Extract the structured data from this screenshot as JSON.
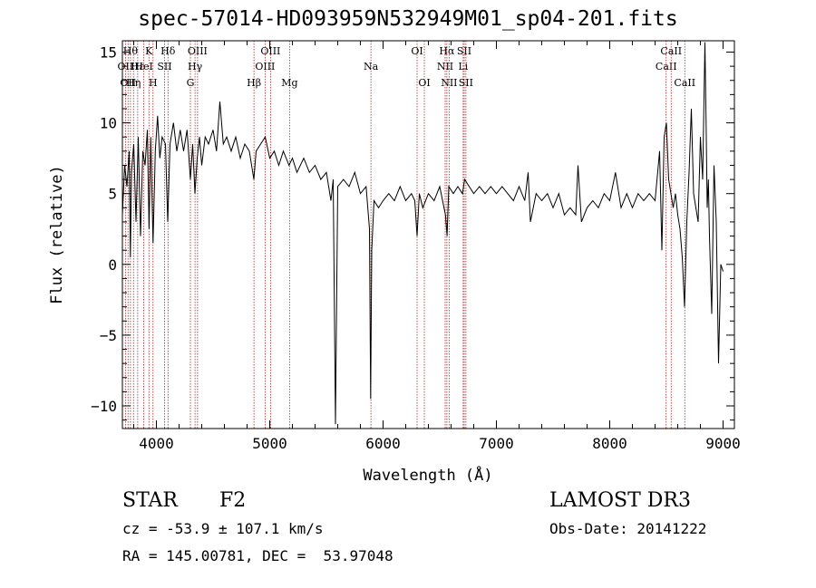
{
  "title": "spec-57014-HD093959N532949M01_sp04-201.fits",
  "footer": {
    "object_class": "STAR",
    "subclass": "F2",
    "survey": "LAMOST DR3",
    "cz": "cz = -53.9 ± 107.1 km/s",
    "obs_date": "Obs-Date: 20141222",
    "coords": "RA = 145.00781, DEC =  53.97048"
  },
  "chart_data": {
    "type": "line",
    "title": "spec-57014-HD093959N532949M01_sp04-201.fits",
    "xlabel": "Wavelength (Å)",
    "ylabel": "Flux (relative)",
    "xlim": [
      3700,
      9100
    ],
    "ylim": [
      -11.6,
      15.8
    ],
    "x_ticks": [
      "4000",
      "5000",
      "6000",
      "7000",
      "8000",
      "9000"
    ],
    "x_tick_values": [
      4000,
      5000,
      6000,
      7000,
      8000,
      9000
    ],
    "y_ticks": [
      "−10",
      "−5",
      "0",
      "5",
      "10",
      "15"
    ],
    "y_tick_values": [
      -10,
      -5,
      0,
      5,
      10,
      15
    ],
    "line_color": "#000000",
    "marker_color": "#b22222",
    "series": [
      {
        "values": [
          [
            3700,
            3.5
          ],
          [
            3720,
            7.0
          ],
          [
            3740,
            5.5
          ],
          [
            3760,
            8.0
          ],
          [
            3770,
            0.5
          ],
          [
            3780,
            6.5
          ],
          [
            3800,
            8.5
          ],
          [
            3820,
            3.0
          ],
          [
            3840,
            9.0
          ],
          [
            3860,
            2.0
          ],
          [
            3880,
            8.0
          ],
          [
            3900,
            7.0
          ],
          [
            3920,
            9.5
          ],
          [
            3935,
            2.5
          ],
          [
            3950,
            9.0
          ],
          [
            3970,
            1.5
          ],
          [
            3990,
            8.0
          ],
          [
            4010,
            10.5
          ],
          [
            4030,
            7.5
          ],
          [
            4050,
            9.0
          ],
          [
            4080,
            8.5
          ],
          [
            4100,
            3.0
          ],
          [
            4120,
            8.5
          ],
          [
            4150,
            10.0
          ],
          [
            4180,
            8.0
          ],
          [
            4210,
            9.5
          ],
          [
            4240,
            8.0
          ],
          [
            4270,
            9.5
          ],
          [
            4300,
            6.0
          ],
          [
            4320,
            8.5
          ],
          [
            4340,
            5.0
          ],
          [
            4360,
            7.5
          ],
          [
            4380,
            9.0
          ],
          [
            4400,
            7.0
          ],
          [
            4430,
            9.0
          ],
          [
            4460,
            8.5
          ],
          [
            4500,
            9.5
          ],
          [
            4530,
            8.0
          ],
          [
            4560,
            11.5
          ],
          [
            4590,
            8.5
          ],
          [
            4620,
            9.0
          ],
          [
            4660,
            8.0
          ],
          [
            4700,
            9.0
          ],
          [
            4740,
            7.5
          ],
          [
            4780,
            8.5
          ],
          [
            4820,
            8.0
          ],
          [
            4860,
            6.0
          ],
          [
            4880,
            8.0
          ],
          [
            4920,
            8.5
          ],
          [
            4960,
            9.0
          ],
          [
            5000,
            7.5
          ],
          [
            5040,
            8.0
          ],
          [
            5080,
            7.0
          ],
          [
            5120,
            8.0
          ],
          [
            5170,
            7.0
          ],
          [
            5200,
            7.5
          ],
          [
            5240,
            6.5
          ],
          [
            5300,
            7.5
          ],
          [
            5350,
            6.5
          ],
          [
            5400,
            7.0
          ],
          [
            5450,
            6.0
          ],
          [
            5500,
            6.5
          ],
          [
            5540,
            4.5
          ],
          [
            5560,
            6.0
          ],
          [
            5580,
            -11.3
          ],
          [
            5600,
            5.5
          ],
          [
            5650,
            6.0
          ],
          [
            5700,
            5.5
          ],
          [
            5750,
            6.5
          ],
          [
            5800,
            5.0
          ],
          [
            5850,
            5.5
          ],
          [
            5880,
            2.5
          ],
          [
            5890,
            -9.5
          ],
          [
            5900,
            1.0
          ],
          [
            5920,
            4.5
          ],
          [
            5960,
            4.0
          ],
          [
            6000,
            4.5
          ],
          [
            6050,
            5.0
          ],
          [
            6100,
            4.5
          ],
          [
            6150,
            5.5
          ],
          [
            6200,
            4.5
          ],
          [
            6250,
            5.0
          ],
          [
            6280,
            4.5
          ],
          [
            6300,
            2.0
          ],
          [
            6320,
            5.0
          ],
          [
            6350,
            4.0
          ],
          [
            6400,
            5.0
          ],
          [
            6450,
            4.5
          ],
          [
            6500,
            5.5
          ],
          [
            6550,
            3.5
          ],
          [
            6565,
            2.0
          ],
          [
            6580,
            5.5
          ],
          [
            6620,
            5.0
          ],
          [
            6660,
            5.5
          ],
          [
            6700,
            5.0
          ],
          [
            6720,
            6.0
          ],
          [
            6760,
            5.5
          ],
          [
            6800,
            5.0
          ],
          [
            6850,
            5.5
          ],
          [
            6900,
            5.0
          ],
          [
            6950,
            5.5
          ],
          [
            7000,
            5.0
          ],
          [
            7050,
            5.5
          ],
          [
            7100,
            5.0
          ],
          [
            7150,
            4.5
          ],
          [
            7200,
            5.5
          ],
          [
            7250,
            4.5
          ],
          [
            7280,
            6.5
          ],
          [
            7300,
            3.0
          ],
          [
            7350,
            5.0
          ],
          [
            7400,
            4.5
          ],
          [
            7450,
            5.0
          ],
          [
            7500,
            4.0
          ],
          [
            7550,
            5.0
          ],
          [
            7600,
            3.5
          ],
          [
            7650,
            4.0
          ],
          [
            7700,
            3.5
          ],
          [
            7720,
            7.0
          ],
          [
            7750,
            3.0
          ],
          [
            7800,
            4.0
          ],
          [
            7850,
            4.5
          ],
          [
            7900,
            4.0
          ],
          [
            7950,
            5.0
          ],
          [
            8000,
            4.5
          ],
          [
            8050,
            6.5
          ],
          [
            8100,
            4.0
          ],
          [
            8150,
            5.0
          ],
          [
            8200,
            4.0
          ],
          [
            8250,
            5.0
          ],
          [
            8300,
            4.5
          ],
          [
            8350,
            5.0
          ],
          [
            8400,
            4.5
          ],
          [
            8440,
            8.0
          ],
          [
            8460,
            1.0
          ],
          [
            8480,
            9.0
          ],
          [
            8500,
            10.0
          ],
          [
            8520,
            6.0
          ],
          [
            8540,
            5.0
          ],
          [
            8560,
            4.0
          ],
          [
            8580,
            5.0
          ],
          [
            8600,
            3.5
          ],
          [
            8620,
            2.5
          ],
          [
            8640,
            0.5
          ],
          [
            8660,
            -3.0
          ],
          [
            8680,
            3.0
          ],
          [
            8700,
            6.5
          ],
          [
            8720,
            11.0
          ],
          [
            8740,
            5.0
          ],
          [
            8760,
            4.0
          ],
          [
            8780,
            3.0
          ],
          [
            8800,
            9.0
          ],
          [
            8820,
            6.0
          ],
          [
            8840,
            15.7
          ],
          [
            8850,
            10.0
          ],
          [
            8860,
            4.0
          ],
          [
            8870,
            6.0
          ],
          [
            8880,
            2.0
          ],
          [
            8900,
            -3.5
          ],
          [
            8920,
            7.0
          ],
          [
            8940,
            3.0
          ],
          [
            8960,
            -7.0
          ],
          [
            8980,
            0.0
          ],
          [
            9000,
            -0.5
          ]
        ]
      }
    ],
    "line_markers": [
      {
        "wavelength": 3727,
        "labels": [
          "OII"
        ],
        "rows": [
          1
        ]
      },
      {
        "wavelength": 3750,
        "labels": [
          "OII"
        ],
        "rows": [
          2
        ]
      },
      {
        "wavelength": 3771,
        "labels": [
          "Hθ"
        ],
        "rows": [
          0
        ]
      },
      {
        "wavelength": 3798,
        "labels": [
          "Hη"
        ],
        "rows": [
          2
        ]
      },
      {
        "wavelength": 3835,
        "labels": [
          "Hε"
        ],
        "rows": [
          1
        ]
      },
      {
        "wavelength": 3889,
        "labels": [
          "HeI"
        ],
        "rows": [
          1
        ]
      },
      {
        "wavelength": 3934,
        "labels": [
          "K"
        ],
        "rows": [
          0
        ]
      },
      {
        "wavelength": 3970,
        "labels": [
          "H"
        ],
        "rows": [
          2
        ]
      },
      {
        "wavelength": 4072,
        "labels": [
          "SII"
        ],
        "rows": [
          1
        ]
      },
      {
        "wavelength": 4102,
        "labels": [
          "Hδ"
        ],
        "rows": [
          0
        ]
      },
      {
        "wavelength": 4300,
        "labels": [
          "G"
        ],
        "rows": [
          2
        ]
      },
      {
        "wavelength": 4341,
        "labels": [
          "Hγ"
        ],
        "rows": [
          1
        ]
      },
      {
        "wavelength": 4363,
        "labels": [
          "OIII"
        ],
        "rows": [
          0
        ]
      },
      {
        "wavelength": 4861,
        "labels": [
          "Hβ"
        ],
        "rows": [
          2
        ]
      },
      {
        "wavelength": 4959,
        "labels": [
          "OIII"
        ],
        "rows": [
          1
        ]
      },
      {
        "wavelength": 5007,
        "labels": [
          "OIII"
        ],
        "rows": [
          0
        ]
      },
      {
        "wavelength": 5175,
        "labels": [
          "Mg"
        ],
        "rows": [
          2
        ]
      },
      {
        "wavelength": 5893,
        "labels": [
          "Na"
        ],
        "rows": [
          1
        ]
      },
      {
        "wavelength": 6300,
        "labels": [
          "OI"
        ],
        "rows": [
          0
        ]
      },
      {
        "wavelength": 6364,
        "labels": [
          "OI"
        ],
        "rows": [
          2
        ]
      },
      {
        "wavelength": 6548,
        "labels": [
          "NII"
        ],
        "rows": [
          1
        ]
      },
      {
        "wavelength": 6563,
        "labels": [
          "Hα"
        ],
        "rows": [
          0
        ]
      },
      {
        "wavelength": 6583,
        "labels": [
          "NII"
        ],
        "rows": [
          2
        ]
      },
      {
        "wavelength": 6707,
        "labels": [
          "Li"
        ],
        "rows": [
          1
        ]
      },
      {
        "wavelength": 6716,
        "labels": [
          "SII"
        ],
        "rows": [
          0
        ]
      },
      {
        "wavelength": 6731,
        "labels": [
          "SII"
        ],
        "rows": [
          2
        ]
      },
      {
        "wavelength": 8498,
        "labels": [
          "CaII"
        ],
        "rows": [
          1
        ]
      },
      {
        "wavelength": 8542,
        "labels": [
          "CaII"
        ],
        "rows": [
          0
        ]
      },
      {
        "wavelength": 8662,
        "labels": [
          "CaII"
        ],
        "rows": [
          2
        ]
      }
    ]
  }
}
